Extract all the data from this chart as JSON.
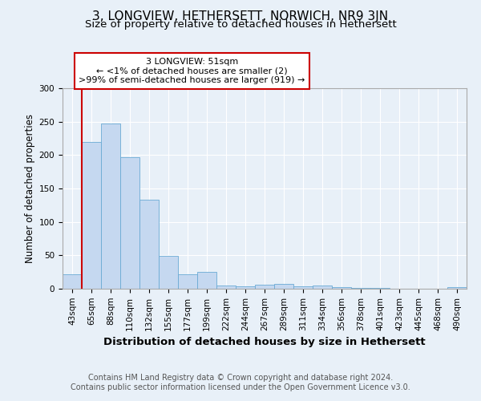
{
  "title": "3, LONGVIEW, HETHERSETT, NORWICH, NR9 3JN",
  "subtitle": "Size of property relative to detached houses in Hethersett",
  "xlabel": "Distribution of detached houses by size in Hethersett",
  "ylabel": "Number of detached properties",
  "categories": [
    "43sqm",
    "65sqm",
    "88sqm",
    "110sqm",
    "132sqm",
    "155sqm",
    "177sqm",
    "199sqm",
    "222sqm",
    "244sqm",
    "267sqm",
    "289sqm",
    "311sqm",
    "334sqm",
    "356sqm",
    "378sqm",
    "401sqm",
    "423sqm",
    "445sqm",
    "468sqm",
    "490sqm"
  ],
  "values": [
    22,
    220,
    247,
    197,
    133,
    49,
    22,
    25,
    5,
    4,
    6,
    7,
    4,
    5,
    2,
    1,
    1,
    0,
    0,
    0,
    3
  ],
  "bar_color": "#c5d8f0",
  "bar_edge_color": "#6aaad4",
  "highlight_line_color": "#cc0000",
  "annotation_text": "3 LONGVIEW: 51sqm\n← <1% of detached houses are smaller (2)\n>99% of semi-detached houses are larger (919) →",
  "annotation_box_color": "#ffffff",
  "annotation_box_edge": "#cc0000",
  "ylim": [
    0,
    300
  ],
  "yticks": [
    0,
    50,
    100,
    150,
    200,
    250,
    300
  ],
  "footer_text": "Contains HM Land Registry data © Crown copyright and database right 2024.\nContains public sector information licensed under the Open Government Licence v3.0.",
  "background_color": "#e8f0f8",
  "plot_background": "#e8f0f8",
  "title_fontsize": 11,
  "subtitle_fontsize": 9.5,
  "xlabel_fontsize": 9.5,
  "ylabel_fontsize": 8.5,
  "tick_fontsize": 7.5,
  "footer_fontsize": 7,
  "annotation_fontsize": 8
}
